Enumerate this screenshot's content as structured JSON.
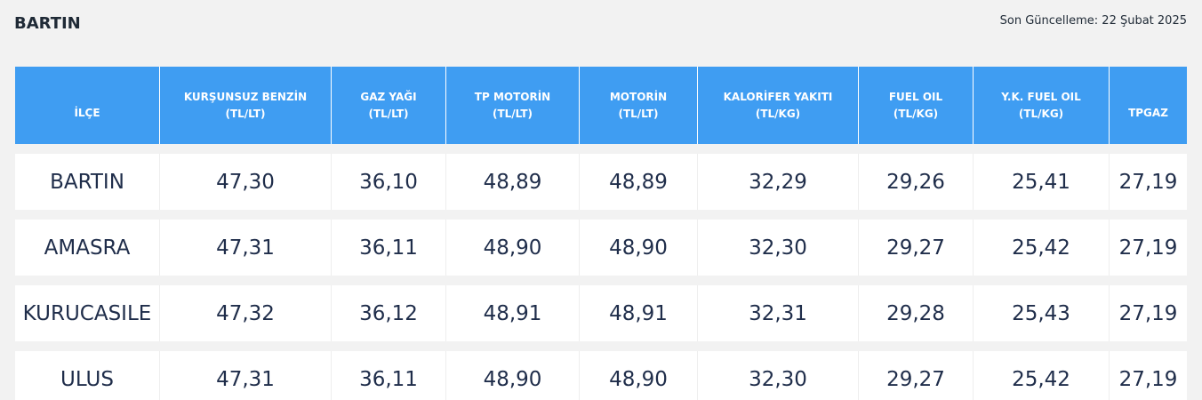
{
  "header": {
    "title": "BARTIN",
    "updated": "Son Güncelleme: 22 Şubat 2025"
  },
  "table": {
    "columns": [
      {
        "line1": "İLÇE",
        "line2": ""
      },
      {
        "line1": "KURŞUNSUZ BENZİN",
        "line2": "(TL/LT)"
      },
      {
        "line1": "GAZ YAĞI",
        "line2": "(TL/LT)"
      },
      {
        "line1": "TP MOTORİN",
        "line2": "(TL/LT)"
      },
      {
        "line1": "MOTORİN",
        "line2": "(TL/LT)"
      },
      {
        "line1": "KALORİFER YAKITI",
        "line2": "(TL/KG)"
      },
      {
        "line1": "FUEL OIL",
        "line2": "(TL/KG)"
      },
      {
        "line1": "Y.K. FUEL OIL",
        "line2": "(TL/KG)"
      },
      {
        "line1": "TPGAZ",
        "line2": ""
      }
    ],
    "rows": [
      [
        "BARTIN",
        "47,30",
        "36,10",
        "48,89",
        "48,89",
        "32,29",
        "29,26",
        "25,41",
        "27,19"
      ],
      [
        "AMASRA",
        "47,31",
        "36,11",
        "48,90",
        "48,90",
        "32,30",
        "29,27",
        "25,42",
        "27,19"
      ],
      [
        "KURUCASILE",
        "47,32",
        "36,12",
        "48,91",
        "48,91",
        "32,31",
        "29,28",
        "25,43",
        "27,19"
      ],
      [
        "ULUS",
        "47,31",
        "36,11",
        "48,90",
        "48,90",
        "32,30",
        "29,27",
        "25,42",
        "27,19"
      ]
    ]
  }
}
